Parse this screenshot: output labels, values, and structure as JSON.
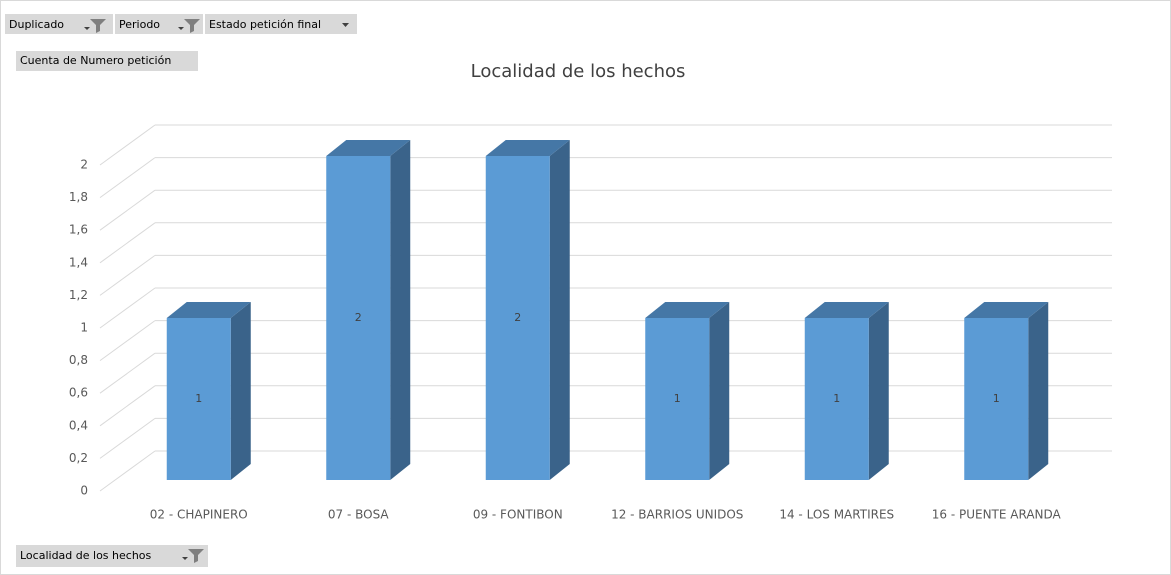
{
  "filters": {
    "duplicado": "Duplicado",
    "periodo": "Periodo",
    "estado": "Estado petición final"
  },
  "value_field": "Cuenta de Numero petición",
  "axis_field": "Localidad de los hechos",
  "chart_data": {
    "type": "bar3d",
    "title": "Localidad de los hechos",
    "categories": [
      "02 - CHAPINERO",
      "07 - BOSA",
      "09 - FONTIBON",
      "12 - BARRIOS UNIDOS",
      "14 - LOS MARTIRES",
      "16 - PUENTE ARANDA"
    ],
    "values": [
      1,
      2,
      2,
      1,
      1,
      1
    ],
    "color": "#5b9bd5",
    "ylim": [
      0,
      2
    ],
    "yticks": [
      0,
      {
        "value": 0.2,
        "label": "0,2"
      },
      {
        "value": 0.4,
        "label": "0,4"
      },
      {
        "value": 0.6,
        "label": "0,6"
      },
      {
        "value": 0.8,
        "label": "0,8"
      },
      1,
      {
        "value": 1.2,
        "label": "1,2"
      },
      {
        "value": 1.4,
        "label": "1,4"
      },
      {
        "value": 1.6,
        "label": "1,6"
      },
      {
        "value": 1.8,
        "label": "1,8"
      },
      2
    ],
    "grid": true
  }
}
